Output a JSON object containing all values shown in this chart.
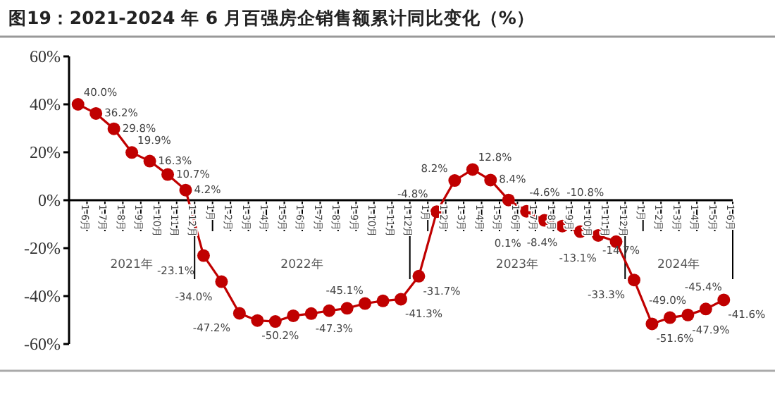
{
  "chart_data": {
    "type": "line",
    "title": "图19：2021-2024 年 6 月百强房企销售额累计同比变化（%）",
    "categories": [
      "1-6月",
      "1-7月",
      "1-8月",
      "1-9月",
      "1-10月",
      "1-11月",
      "1-12月",
      "1月",
      "1-2月",
      "1-3月",
      "1-4月",
      "1-5月",
      "1-6月",
      "1-7月",
      "1-8月",
      "1-9月",
      "1-10月",
      "1-11月",
      "1-12月",
      "1月",
      "1-2月",
      "1-3月",
      "1-4月",
      "1-5月",
      "1-6月",
      "1-7月",
      "1-8月",
      "1-9月",
      "1-10月",
      "1-11月",
      "1-12月",
      "1月",
      "1-2月",
      "1-3月",
      "1-4月",
      "1-5月",
      "1-6月"
    ],
    "values": [
      40.0,
      36.2,
      29.8,
      19.9,
      16.3,
      10.7,
      4.2,
      -23.1,
      -34.0,
      -47.2,
      -50.2,
      -50.6,
      -48.2,
      -47.3,
      -46.1,
      -45.1,
      -43.1,
      -42.0,
      -41.3,
      -31.7,
      -4.8,
      8.2,
      12.8,
      8.4,
      0.1,
      -4.6,
      -8.4,
      -10.8,
      -13.1,
      -14.7,
      -17.3,
      -33.3,
      -51.6,
      -49.0,
      -47.9,
      -45.4,
      -41.6
    ],
    "value_labels": [
      "40.0%",
      "36.2%",
      "29.8%",
      "19.9%",
      "16.3%",
      "10.7%",
      "4.2%",
      "-23.1%",
      "-34.0%",
      "-47.2%",
      "-50.2%",
      null,
      null,
      "-47.3%",
      null,
      "-45.1%",
      null,
      null,
      "-41.3%",
      "-31.7%",
      "-4.8%",
      "8.2%",
      "12.8%",
      "8.4%",
      "0.1%",
      "-4.6%",
      "-8.4%",
      "-10.8%",
      "-13.1%",
      "-14.7%",
      null,
      "-33.3%",
      "-51.6%",
      "-49.0%",
      "-47.9%",
      "-45.4%",
      "-41.6%"
    ],
    "annotations": [
      "2021年",
      "2022年",
      "2023年",
      "2024年"
    ],
    "color": "#c00000",
    "marker": "circle",
    "ylim": [
      -60,
      60
    ],
    "yticks": [
      {
        "value": -60,
        "label": "-60%"
      },
      {
        "value": -40,
        "label": "-40%"
      },
      {
        "value": -20,
        "label": "-20%"
      },
      {
        "value": 0,
        "label": "0%"
      },
      {
        "value": 20,
        "label": "20%"
      },
      {
        "value": 40,
        "label": "40%"
      },
      {
        "value": 60,
        "label": "60%"
      }
    ],
    "grid": false
  }
}
